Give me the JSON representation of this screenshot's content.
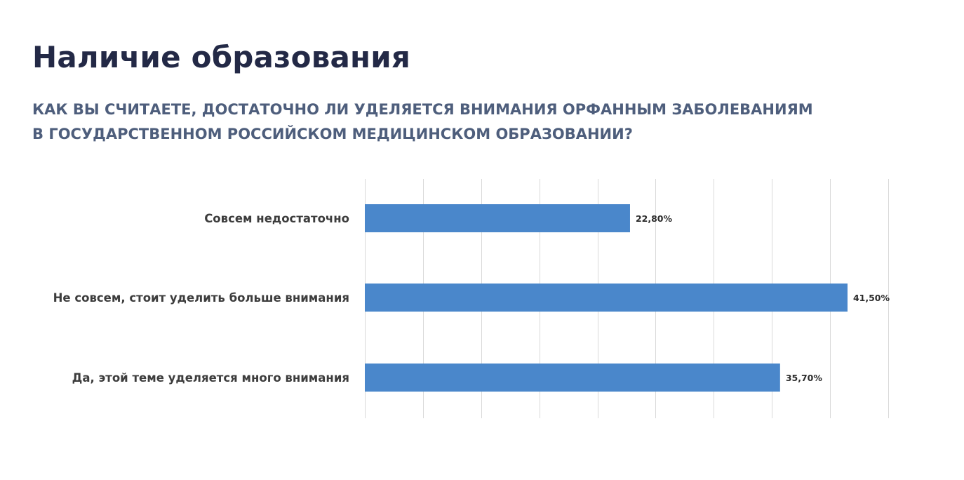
{
  "page": {
    "title": "Наличие образования",
    "subtitle_lines": [
      "КАК ВЫ СЧИТАЕТЕ, ДОСТАТОЧНО ЛИ УДЕЛЯЕТСЯ ВНИМАНИЯ ОРФАННЫМ ЗАБОЛЕВАНИЯМ",
      "В ГОСУДАРСТВЕННОМ РОССИЙСКОМ МЕДИЦИНСКОМ ОБРАЗОВАНИИ?"
    ]
  },
  "chart_data": {
    "type": "bar",
    "orientation": "horizontal",
    "categories": [
      "Совсем недостаточно",
      "Не совсем, стоит уделить больше внимания",
      "Да, этой теме уделяется много внимания"
    ],
    "values": [
      22.8,
      41.5,
      35.7
    ],
    "value_labels": [
      "22,80%",
      "41,50%",
      "35,70%"
    ],
    "xlim": [
      0,
      45
    ],
    "x_gridline_step": 5,
    "grid": true,
    "bar_color": "#4a87cb",
    "gridline_color": "#d9d9d9",
    "legend": "none"
  }
}
